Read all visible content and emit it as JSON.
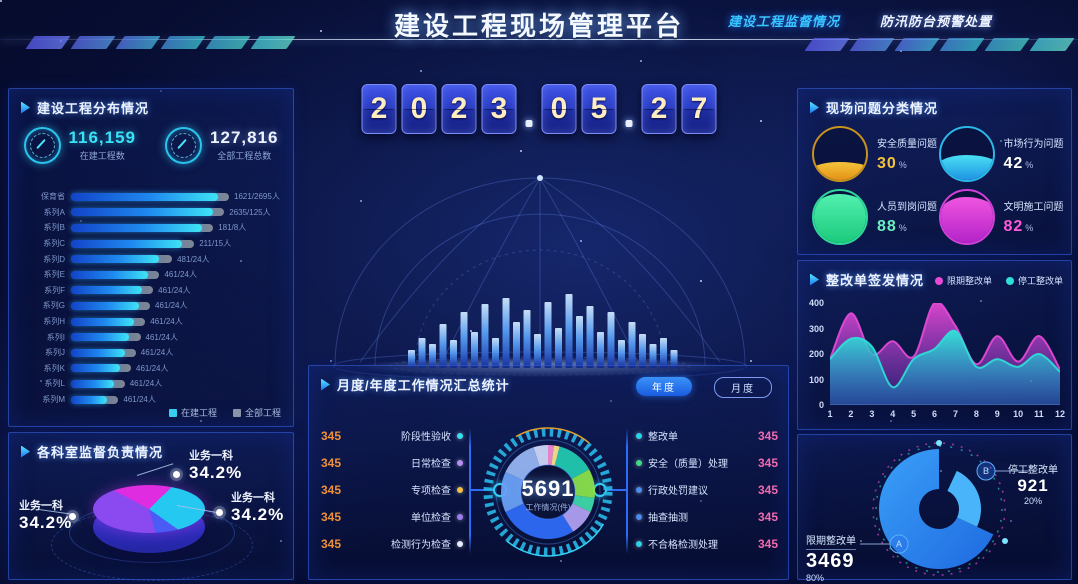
{
  "header": {
    "title": "建设工程现场管理平台",
    "nav": [
      {
        "label": "建设工程监督情况"
      },
      {
        "label": "防汛防台预警处置"
      }
    ]
  },
  "date": {
    "year": [
      "2",
      "0",
      "2",
      "3"
    ],
    "month": [
      "0",
      "5"
    ],
    "day": [
      "2",
      "7"
    ]
  },
  "distribution": {
    "title": "建设工程分布情况",
    "stats": [
      {
        "value": "116,159",
        "label": "在建工程数"
      },
      {
        "value": "127,816",
        "label": "全部工程总数"
      }
    ],
    "legend": [
      {
        "label": "在建工程",
        "color": "#35d0f0"
      },
      {
        "label": "全部工程",
        "color": "#8a94a8"
      }
    ],
    "chart_data": {
      "type": "bar",
      "rows": [
        {
          "label": "保育省",
          "value": "1621/2695人",
          "track": 100,
          "fill": 93
        },
        {
          "label": "系列A",
          "value": "2635/125人",
          "track": 97,
          "fill": 90
        },
        {
          "label": "系列B",
          "value": "181/8人",
          "track": 90,
          "fill": 83
        },
        {
          "label": "系列C",
          "value": "211/15人",
          "track": 78,
          "fill": 70
        },
        {
          "label": "系列D",
          "value": "481/24人",
          "track": 64,
          "fill": 56
        },
        {
          "label": "系列E",
          "value": "461/24人",
          "track": 56,
          "fill": 49
        },
        {
          "label": "系列F",
          "value": "461/24人",
          "track": 52,
          "fill": 45
        },
        {
          "label": "系列G",
          "value": "461/24人",
          "track": 50,
          "fill": 43
        },
        {
          "label": "系列H",
          "value": "461/24人",
          "track": 47,
          "fill": 40
        },
        {
          "label": "系列I",
          "value": "461/24人",
          "track": 44,
          "fill": 37
        },
        {
          "label": "系列J",
          "value": "461/24人",
          "track": 41,
          "fill": 34
        },
        {
          "label": "系列K",
          "value": "461/24人",
          "track": 38,
          "fill": 31
        },
        {
          "label": "系列L",
          "value": "461/24人",
          "track": 34,
          "fill": 27
        },
        {
          "label": "系列M",
          "value": "461/24人",
          "track": 30,
          "fill": 23
        }
      ]
    }
  },
  "departments": {
    "title": "各科室监督负责情况",
    "chart_data": {
      "type": "pie",
      "slices": [
        {
          "label": "业务一科",
          "percent": "34.2%",
          "color": "#e02ce0"
        },
        {
          "label": "业务一科",
          "percent": "34.2%",
          "color": "#24c8f0"
        },
        {
          "label": "业务一科",
          "percent": "34.2%",
          "color": "#8a4af0"
        }
      ]
    }
  },
  "summary": {
    "title": "月度/年度工作情况汇总统计",
    "buttons": [
      {
        "label": "年度"
      },
      {
        "label": "月度"
      }
    ],
    "gauge": {
      "value": "5691",
      "label": "工作情况(件)",
      "segments": [
        {
          "color": "#f08ad0",
          "pct": 2
        },
        {
          "color": "#f5e08a",
          "pct": 2
        },
        {
          "color": "#22c8b0",
          "pct": 13
        },
        {
          "color": "#8ae04a",
          "pct": 10
        },
        {
          "color": "#3ed8a8",
          "pct": 5
        },
        {
          "color": "#b0a0f0",
          "pct": 9
        },
        {
          "color": "#2e6cf5",
          "pct": 27
        },
        {
          "color": "#6aa0f5",
          "pct": 14
        },
        {
          "color": "#96b4f0",
          "pct": 13
        },
        {
          "color": "#cdd6f8",
          "pct": 5
        }
      ]
    },
    "left_items": [
      {
        "value": "345",
        "label": "阶段性验收",
        "dot": "#35e0f0"
      },
      {
        "value": "345",
        "label": "日常检查",
        "dot": "#b88df5"
      },
      {
        "value": "345",
        "label": "专项检查",
        "dot": "#f5c042"
      },
      {
        "value": "345",
        "label": "单位检查",
        "dot": "#9f7df0"
      },
      {
        "value": "345",
        "label": "检测行为检查",
        "dot": "#e8ecff"
      }
    ],
    "right_items": [
      {
        "label": "整改单",
        "value": "345",
        "dot": "#2ad4e8"
      },
      {
        "label": "安全（质量）处理",
        "value": "345",
        "dot": "#3ddc84"
      },
      {
        "label": "行政处罚建议",
        "value": "345",
        "dot": "#4a8df0"
      },
      {
        "label": "抽查抽测",
        "value": "345",
        "dot": "#4a8df0"
      },
      {
        "label": "不合格检测处理",
        "value": "345",
        "dot": "#2ad4e8"
      }
    ]
  },
  "problems": {
    "title": "现场问题分类情况",
    "items": [
      {
        "label": "安全质量问题",
        "value": "30",
        "suffix": "%",
        "ring": "#c8921e",
        "fill1": "#f5c43a",
        "fill2": "#e08a10",
        "value_color": "#f5c43a",
        "pct": 30
      },
      {
        "label": "市场行为问题",
        "value": "42",
        "suffix": "%",
        "ring": "#2bb8e8",
        "fill1": "#4ae0f5",
        "fill2": "#1a8ae0",
        "value_color": "#ffffff",
        "pct": 42
      },
      {
        "label": "人员到岗问题",
        "value": "88",
        "suffix": "%",
        "ring": "#2ed89a",
        "fill1": "#52f0b0",
        "fill2": "#18c878",
        "value_color": "#6af0c0",
        "pct": 88
      },
      {
        "label": "文明施工问题",
        "value": "82",
        "suffix": "%",
        "ring": "#d040d8",
        "fill1": "#f055e0",
        "fill2": "#b020c8",
        "value_color": "#ff5ad8",
        "pct": 82
      }
    ]
  },
  "issuance": {
    "title": "整改单签发情况",
    "chart_data": {
      "type": "area",
      "x": [
        1,
        2,
        3,
        4,
        5,
        6,
        7,
        8,
        9,
        10,
        11,
        12
      ],
      "ylim": [
        0,
        400
      ],
      "yticks": [
        400,
        300,
        200,
        100,
        0
      ],
      "series": [
        {
          "name": "限期整改单",
          "color": "#e84ad8",
          "values": [
            180,
            360,
            200,
            250,
            190,
            400,
            310,
            160,
            270,
            170,
            270,
            140
          ]
        },
        {
          "name": "停工整改单",
          "color": "#2ee0d8",
          "values": [
            180,
            260,
            230,
            70,
            180,
            220,
            290,
            150,
            180,
            150,
            200,
            130
          ]
        }
      ]
    }
  },
  "donut": {
    "chart_data": {
      "type": "pie",
      "segments": [
        {
          "label": "停工整改单",
          "value": "921",
          "percent": "20%",
          "marker": "B",
          "color": "#4ab4fa",
          "start": 25,
          "end": 115,
          "radius": 42
        },
        {
          "label": "限期整改单",
          "value": "3469",
          "percent": "80%",
          "marker": "A",
          "color": "#2f86f0",
          "start": 115,
          "end": 360,
          "radius": 60
        }
      ]
    }
  }
}
